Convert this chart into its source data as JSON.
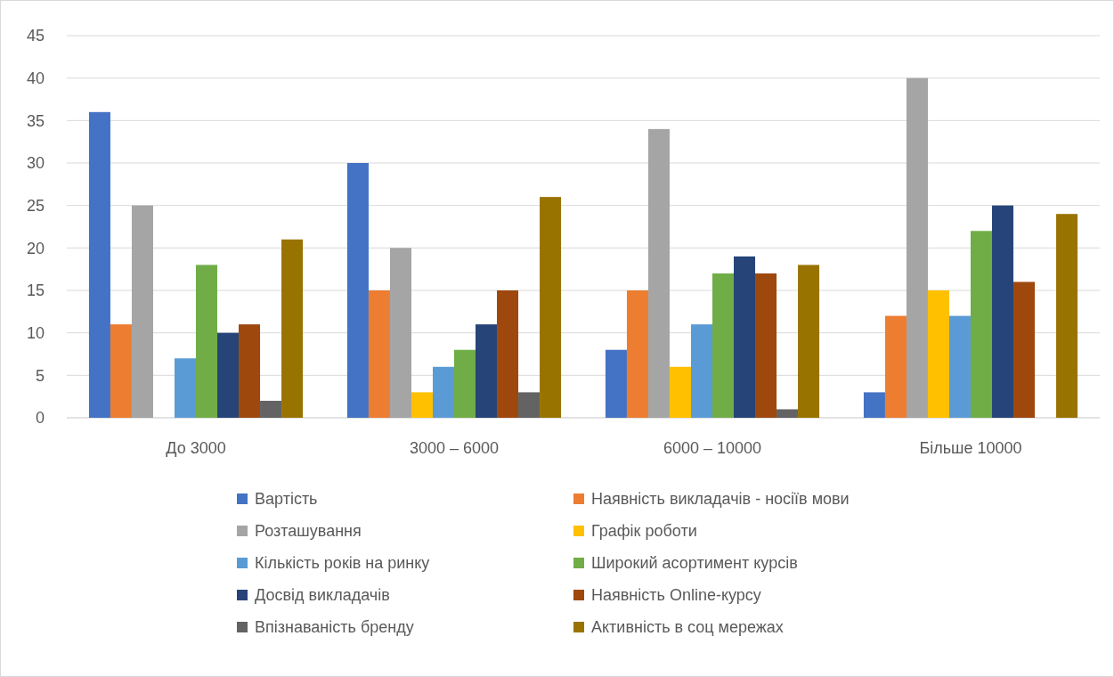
{
  "chart_data": {
    "type": "bar",
    "categories": [
      "До 3000",
      "3000 – 6000",
      "6000 – 10000",
      "Більше 10000"
    ],
    "series": [
      {
        "name": "Вартість",
        "color": "#4472c4",
        "values": [
          36,
          30,
          8,
          3
        ]
      },
      {
        "name": "Наявність викладачів - носіїв мови",
        "color": "#ed7d31",
        "values": [
          11,
          15,
          15,
          12
        ]
      },
      {
        "name": "Розташування",
        "color": "#a5a5a5",
        "values": [
          25,
          20,
          34,
          40
        ]
      },
      {
        "name": "Графік роботи",
        "color": "#ffc000",
        "values": [
          0,
          3,
          6,
          15
        ]
      },
      {
        "name": "Кількість років на ринку",
        "color": "#5b9bd5",
        "values": [
          7,
          6,
          11,
          12
        ]
      },
      {
        "name": "Широкий асортимент курсів",
        "color": "#70ad47",
        "values": [
          18,
          8,
          17,
          22
        ]
      },
      {
        "name": "Досвід викладачів",
        "color": "#264478",
        "values": [
          10,
          11,
          19,
          25
        ]
      },
      {
        "name": "Наявність Online-курсу",
        "color": "#9e480e",
        "values": [
          11,
          15,
          17,
          16
        ]
      },
      {
        "name": "Впізнаваність бренду",
        "color": "#636363",
        "values": [
          2,
          3,
          1,
          0
        ]
      },
      {
        "name": "Активність в соц мережах",
        "color": "#997300",
        "values": [
          21,
          26,
          18,
          24
        ]
      }
    ],
    "ylim": [
      0,
      45
    ],
    "yticks": [
      0,
      5,
      10,
      15,
      20,
      25,
      30,
      35,
      40,
      45
    ],
    "grid": "y",
    "legend": "bottom"
  }
}
